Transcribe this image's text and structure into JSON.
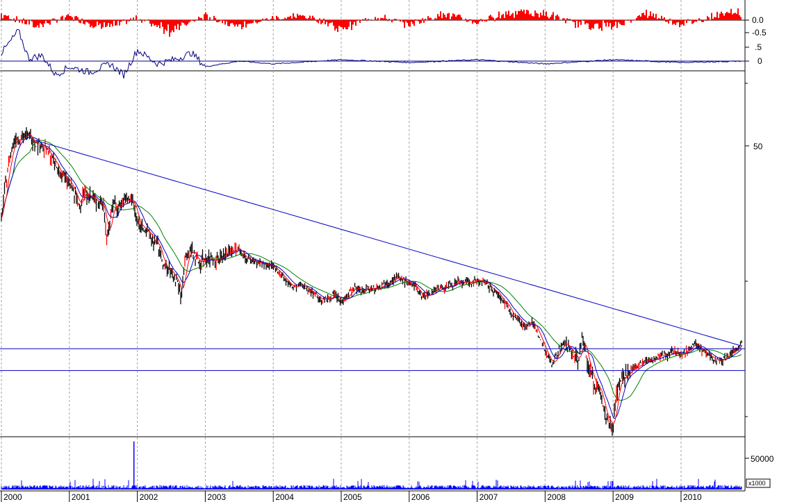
{
  "chart_data": {
    "type": "line",
    "colors": {
      "price": "#000000",
      "ma_short": "#ff0000",
      "ma_mid": "#0000c0",
      "ma_long": "#008000",
      "trendlines": "#0000c0",
      "volume": "#0000ff",
      "indicator_top": "#ff0000",
      "indicator_second": "#000080",
      "grid": "#a0a0a0"
    },
    "x_axis": {
      "labels": [
        "2000",
        "2001",
        "2002",
        "2003",
        "2004",
        "2005",
        "2006",
        "2007",
        "2008",
        "2009",
        "2010"
      ],
      "range": [
        2000.0,
        2010.9
      ]
    },
    "panels": [
      {
        "name": "indicator_top",
        "type": "histogram",
        "tick_labels": [
          "0.0",
          "-0.5"
        ],
        "ylim": [
          -1.0,
          0.6
        ],
        "profile_x": [
          2000.0,
          2000.5,
          2001.0,
          2001.5,
          2002.0,
          2002.5,
          2003.0,
          2003.5,
          2004.0,
          2004.5,
          2005.0,
          2005.5,
          2006.0,
          2006.5,
          2007.0,
          2007.5,
          2008.0,
          2008.5,
          2009.0,
          2009.5,
          2010.0,
          2010.5,
          2010.9
        ],
        "profile_y": [
          0.3,
          -0.3,
          0.2,
          -0.4,
          0.1,
          -0.5,
          0.2,
          -0.3,
          0.1,
          0.2,
          -0.4,
          0.2,
          -0.2,
          0.3,
          -0.1,
          0.4,
          0.3,
          -0.2,
          -0.3,
          0.3,
          -0.2,
          0.2,
          0.4
        ]
      },
      {
        "name": "indicator_second",
        "type": "line",
        "tick_labels": [
          ".5",
          "0"
        ],
        "ylim": [
          -1.0,
          1.5
        ],
        "x": [
          2000.0,
          2000.1,
          2000.25,
          2000.4,
          2000.6,
          2000.8,
          2001.0,
          2001.3,
          2001.6,
          2001.8,
          2002.0,
          2002.3,
          2002.6,
          2002.8,
          2003.0,
          2003.5,
          2004.0,
          2005.0,
          2006.0,
          2007.0,
          2008.0,
          2009.0,
          2010.0,
          2010.9
        ],
        "y": [
          0.3,
          0.6,
          1.1,
          0.1,
          0.2,
          -0.5,
          -0.2,
          -0.4,
          -0.1,
          -0.5,
          0.4,
          -0.1,
          0.1,
          0.3,
          -0.2,
          0.0,
          -0.1,
          0.05,
          -0.05,
          0.05,
          -0.1,
          0.05,
          -0.05,
          0.0
        ]
      },
      {
        "name": "price",
        "type": "line",
        "scale": "log",
        "tick_labels": [
          "50"
        ],
        "ylim": [
          8,
          120
        ],
        "x": [
          2000.0,
          2000.05,
          2000.1,
          2000.15,
          2000.2,
          2000.3,
          2000.4,
          2000.5,
          2000.6,
          2000.7,
          2000.8,
          2000.9,
          2001.0,
          2001.1,
          2001.15,
          2001.2,
          2001.3,
          2001.4,
          2001.5,
          2001.55,
          2001.6,
          2001.65,
          2001.7,
          2001.8,
          2001.9,
          2001.95,
          2002.0,
          2002.1,
          2002.2,
          2002.3,
          2002.4,
          2002.5,
          2002.6,
          2002.65,
          2002.7,
          2002.8,
          2002.9,
          2003.0,
          2003.1,
          2003.2,
          2003.3,
          2003.4,
          2003.5,
          2003.6,
          2003.8,
          2004.0,
          2004.1,
          2004.2,
          2004.3,
          2004.4,
          2004.5,
          2004.6,
          2004.7,
          2004.8,
          2004.9,
          2005.0,
          2005.1,
          2005.2,
          2005.3,
          2005.4,
          2005.5,
          2005.6,
          2005.8,
          2006.0,
          2006.1,
          2006.2,
          2006.3,
          2006.4,
          2006.5,
          2006.6,
          2006.7,
          2006.8,
          2006.9,
          2007.0,
          2007.1,
          2007.2,
          2007.3,
          2007.4,
          2007.5,
          2007.6,
          2007.7,
          2007.8,
          2007.9,
          2008.0,
          2008.1,
          2008.2,
          2008.3,
          2008.4,
          2008.5,
          2008.55,
          2008.6,
          2008.7,
          2008.8,
          2008.85,
          2008.9,
          2009.0,
          2009.05,
          2009.1,
          2009.2,
          2009.3,
          2009.4,
          2009.5,
          2009.6,
          2009.7,
          2009.8,
          2009.9,
          2010.0,
          2010.1,
          2010.2,
          2010.3,
          2010.4,
          2010.5,
          2010.6,
          2010.7,
          2010.8,
          2010.9
        ],
        "y": [
          40,
          50,
          60,
          68,
          75,
          74,
          76,
          72,
          70,
          66,
          60,
          56,
          53,
          47,
          44,
          50,
          48,
          46,
          45,
          35,
          40,
          46,
          44,
          46,
          47,
          45,
          39,
          38,
          35,
          33,
          28,
          27,
          25,
          22,
          30,
          32,
          29,
          30,
          30,
          30,
          31,
          32,
          32,
          30,
          29,
          28,
          27,
          25,
          24,
          24.5,
          24,
          23,
          22,
          22,
          23,
          21.5,
          23,
          24,
          23.5,
          24,
          24,
          24.5,
          26,
          25,
          24,
          22.5,
          23,
          24,
          24,
          24.5,
          25,
          25,
          25,
          25.5,
          25,
          24,
          23,
          21.5,
          20,
          19,
          18,
          18.5,
          17,
          15,
          13.5,
          15,
          16,
          14.5,
          14,
          16.5,
          14.5,
          12,
          11,
          10,
          9,
          8.5,
          11,
          12,
          12.5,
          13,
          13.5,
          14,
          14,
          14.5,
          14.5,
          15,
          14.5,
          15,
          16,
          15,
          14.5,
          14,
          14,
          14.5,
          15,
          16
        ]
      },
      {
        "name": "volume",
        "type": "bar",
        "tick_labels": [
          "50000"
        ],
        "unit_label": "x1000",
        "ylim": [
          0,
          80000
        ],
        "base_level": 5000,
        "spike": {
          "x": 2001.95,
          "value": 76000
        }
      }
    ],
    "trendline": {
      "from": [
        2000.5,
        73
      ],
      "to": [
        2010.9,
        15.5
      ]
    },
    "support_lines": [
      15.2,
      12.9
    ]
  }
}
